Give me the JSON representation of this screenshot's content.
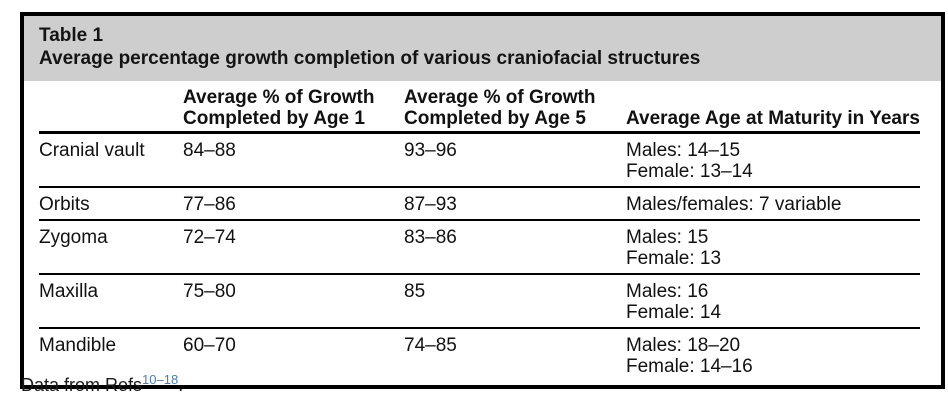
{
  "table": {
    "caption": {
      "label": "Table 1",
      "title": "Average percentage growth completion of various craniofacial structures"
    },
    "columns": {
      "structure": "",
      "age1_line1": "Average % of Growth",
      "age1_line2": "Completed by Age 1",
      "age5_line1": "Average % of Growth",
      "age5_line2": "Completed by Age 5",
      "maturity": "Average Age at Maturity in Years"
    },
    "rows": [
      {
        "structure": "Cranial vault",
        "age1": "84–88",
        "age5": "93–96",
        "maturity1": "Males: 14–15",
        "maturity2": "Female: 13–14"
      },
      {
        "structure": "Orbits",
        "age1": "77–86",
        "age5": "87–93",
        "maturity1": "Males/females: 7 variable",
        "maturity2": ""
      },
      {
        "structure": "Zygoma",
        "age1": "72–74",
        "age5": "83–86",
        "maturity1": "Males: 15",
        "maturity2": "Female: 13"
      },
      {
        "structure": "Maxilla",
        "age1": "75–80",
        "age5": "85",
        "maturity1": "Males: 16",
        "maturity2": "Female: 14"
      },
      {
        "structure": "Mandible",
        "age1": "60–70",
        "age5": "74–85",
        "maturity1": "Males: 18–20",
        "maturity2": "Female: 14–16"
      }
    ],
    "footnote": {
      "prefix": "Data from Refs",
      "refs": "10–18",
      "suffix": "."
    },
    "colors": {
      "caption_band": "#cecece",
      "border": "#000000",
      "text": "#111111",
      "reference_link": "#4d7ea8"
    }
  }
}
